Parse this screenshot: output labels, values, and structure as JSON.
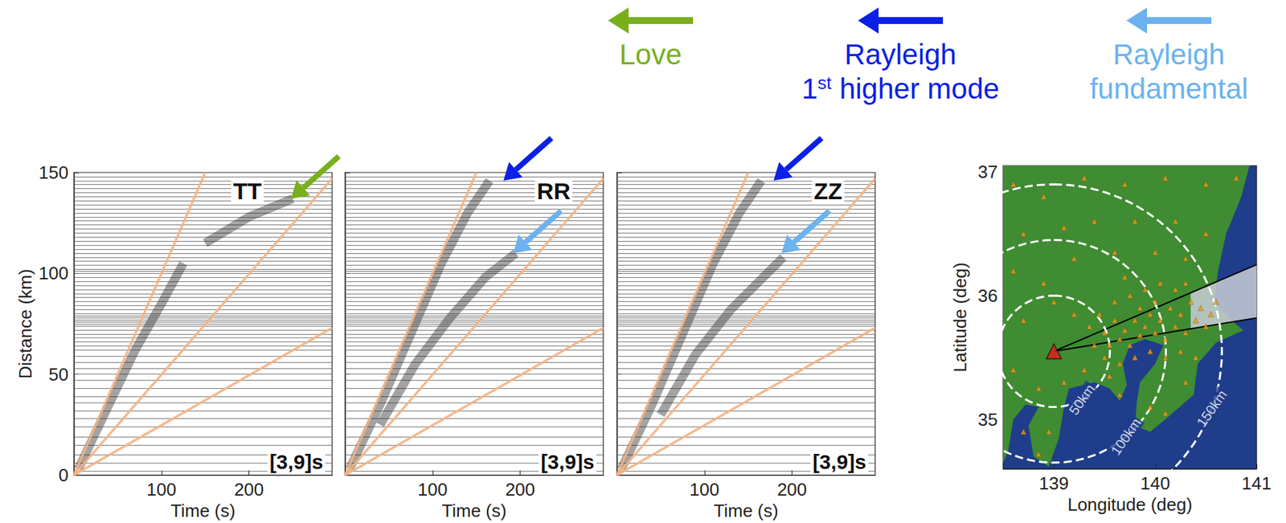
{
  "waves": [
    {
      "lines": [
        "Love"
      ],
      "color": "#7aaf1c"
    },
    {
      "lines": [
        "Rayleigh",
        "1st higher mode"
      ],
      "color": "#0b1fe6"
    },
    {
      "lines": [
        "Rayleigh",
        "fundamental"
      ],
      "color": "#6cb2ee"
    }
  ],
  "chart_data": [
    {
      "type": "record_section",
      "title": "TT",
      "subtitle": "[3,9]s",
      "x_label": "Time (s)",
      "y_label": "Distance (km)",
      "xlim": [
        0,
        295
      ],
      "ylim": [
        0,
        150
      ],
      "xticks": [
        100,
        200
      ],
      "yticks": [
        0,
        50,
        100,
        150
      ],
      "trace_distances": [
        2,
        6,
        10,
        15,
        19,
        24,
        28,
        32,
        36,
        39,
        43,
        47,
        50,
        53,
        56,
        59,
        62,
        64,
        66,
        68,
        70,
        72,
        74,
        75,
        76,
        77,
        78,
        79,
        80,
        82,
        84,
        86,
        88,
        90,
        92,
        94,
        96,
        98,
        100,
        101,
        102,
        104,
        106,
        108,
        110,
        112,
        114,
        116,
        118,
        120,
        122,
        124,
        126,
        128,
        130,
        132,
        134,
        136,
        138,
        140,
        142,
        144,
        146,
        148
      ],
      "wave_packets": [
        [
          [
            5,
            3
          ],
          [
            40,
            35
          ],
          [
            70,
            62
          ],
          [
            100,
            85
          ],
          [
            125,
            105
          ]
        ],
        [
          [
            150,
            115
          ],
          [
            200,
            128
          ],
          [
            250,
            137
          ]
        ]
      ],
      "reference_lines": [
        {
          "x": [
            0,
            150
          ],
          "y": [
            0,
            150
          ],
          "color": "#f4b183"
        },
        {
          "x": [
            0,
            295
          ],
          "y": [
            0,
            147
          ],
          "color": "#f4b183"
        },
        {
          "x": [
            0,
            295
          ],
          "y": [
            0,
            73
          ],
          "color": "#f4b183"
        }
      ],
      "arrows": [
        {
          "wave": "Love",
          "tip": [
            248,
            137
          ]
        }
      ]
    },
    {
      "type": "record_section",
      "title": "RR",
      "subtitle": "[3,9]s",
      "x_label": "Time (s)",
      "xlim": [
        0,
        295
      ],
      "ylim": [
        0,
        150
      ],
      "xticks": [
        100,
        200
      ],
      "yticks": [
        0,
        50,
        100,
        150
      ],
      "tick_labels": "x",
      "trace_distances": [
        2,
        6,
        10,
        15,
        19,
        24,
        28,
        32,
        36,
        39,
        43,
        47,
        50,
        53,
        56,
        59,
        62,
        64,
        66,
        68,
        70,
        72,
        74,
        75,
        76,
        77,
        78,
        79,
        80,
        82,
        84,
        86,
        88,
        90,
        92,
        94,
        96,
        98,
        100,
        101,
        102,
        104,
        106,
        108,
        110,
        112,
        114,
        116,
        118,
        120,
        122,
        124,
        126,
        128,
        130,
        132,
        134,
        136,
        138,
        140,
        142,
        144,
        146,
        148
      ],
      "wave_packets": [
        [
          [
            5,
            3
          ],
          [
            40,
            35
          ],
          [
            80,
            75
          ],
          [
            110,
            105
          ],
          [
            140,
            130
          ],
          [
            165,
            146
          ]
        ],
        [
          [
            40,
            25
          ],
          [
            80,
            55
          ],
          [
            120,
            78
          ],
          [
            160,
            98
          ],
          [
            195,
            110
          ]
        ]
      ],
      "reference_lines": [
        {
          "x": [
            0,
            150
          ],
          "y": [
            0,
            150
          ],
          "color": "#f4b183"
        },
        {
          "x": [
            0,
            295
          ],
          "y": [
            0,
            147
          ],
          "color": "#f4b183"
        },
        {
          "x": [
            0,
            295
          ],
          "y": [
            0,
            73
          ],
          "color": "#f4b183"
        }
      ],
      "arrows": [
        {
          "wave": "Rayleigh 1st higher mode",
          "tip": [
            181,
            146
          ]
        },
        {
          "wave": "Rayleigh fundamental",
          "tip": [
            192,
            110
          ]
        }
      ]
    },
    {
      "type": "record_section",
      "title": "ZZ",
      "subtitle": "[3,9]s",
      "x_label": "Time (s)",
      "xlim": [
        0,
        295
      ],
      "ylim": [
        0,
        150
      ],
      "xticks": [
        100,
        200
      ],
      "yticks": [
        0,
        50,
        100,
        150
      ],
      "tick_labels": "x",
      "trace_distances": [
        2,
        6,
        10,
        15,
        19,
        24,
        28,
        32,
        36,
        39,
        43,
        47,
        50,
        53,
        56,
        59,
        62,
        64,
        66,
        68,
        70,
        72,
        74,
        75,
        76,
        77,
        78,
        79,
        80,
        82,
        84,
        86,
        88,
        90,
        92,
        94,
        96,
        98,
        100,
        101,
        102,
        104,
        106,
        108,
        110,
        112,
        114,
        116,
        118,
        120,
        122,
        124,
        126,
        128,
        130,
        132,
        134,
        136,
        138,
        140,
        142,
        144,
        146,
        148
      ],
      "wave_packets": [
        [
          [
            5,
            3
          ],
          [
            40,
            35
          ],
          [
            80,
            75
          ],
          [
            110,
            105
          ],
          [
            140,
            130
          ],
          [
            165,
            146
          ]
        ],
        [
          [
            50,
            30
          ],
          [
            90,
            60
          ],
          [
            130,
            82
          ],
          [
            190,
            108
          ]
        ]
      ],
      "reference_lines": [
        {
          "x": [
            0,
            150
          ],
          "y": [
            0,
            150
          ],
          "color": "#f4b183"
        },
        {
          "x": [
            0,
            295
          ],
          "y": [
            0,
            147
          ],
          "color": "#f4b183"
        },
        {
          "x": [
            0,
            295
          ],
          "y": [
            0,
            73
          ],
          "color": "#f4b183"
        }
      ],
      "arrows": [
        {
          "wave": "Rayleigh 1st higher mode",
          "tip": [
            179,
            146
          ]
        },
        {
          "wave": "Rayleigh fundamental",
          "tip": [
            188,
            110
          ]
        }
      ]
    },
    {
      "type": "map",
      "x_label": "Longitude (deg)",
      "y_label": "Latitude (deg)",
      "xlim": [
        138.5,
        141
      ],
      "ylim": [
        34.6,
        37.05
      ],
      "xticks": [
        139,
        140,
        141
      ],
      "yticks": [
        35,
        36,
        37
      ],
      "sea": {
        "color": "#1f3d8a"
      },
      "land": {
        "color": "#3f8c32",
        "outline": [
          [
            138.5,
            37.05
          ],
          [
            140.93,
            37.05
          ],
          [
            140.85,
            36.8
          ],
          [
            140.7,
            36.5
          ],
          [
            140.62,
            36.2
          ],
          [
            140.58,
            35.95
          ],
          [
            140.75,
            35.8
          ],
          [
            140.87,
            35.72
          ],
          [
            140.6,
            35.62
          ],
          [
            140.42,
            35.45
          ],
          [
            140.38,
            35.2
          ],
          [
            140.1,
            35.0
          ],
          [
            139.95,
            34.9
          ],
          [
            139.8,
            34.95
          ],
          [
            139.82,
            35.15
          ],
          [
            139.85,
            35.3
          ],
          [
            140.0,
            35.45
          ],
          [
            140.08,
            35.6
          ],
          [
            139.9,
            35.65
          ],
          [
            139.75,
            35.6
          ],
          [
            139.68,
            35.45
          ],
          [
            139.72,
            35.28
          ],
          [
            139.65,
            35.15
          ],
          [
            139.55,
            35.25
          ],
          [
            139.4,
            35.3
          ],
          [
            139.15,
            35.25
          ],
          [
            139.1,
            35.1
          ],
          [
            139.05,
            34.85
          ],
          [
            138.95,
            34.62
          ],
          [
            138.8,
            34.7
          ],
          [
            138.75,
            34.95
          ],
          [
            138.85,
            35.1
          ],
          [
            138.72,
            35.12
          ],
          [
            138.6,
            35.0
          ],
          [
            138.55,
            34.75
          ],
          [
            138.5,
            34.65
          ]
        ]
      },
      "sector": {
        "color": "#c9cdd6",
        "corners": [
          [
            139.0,
            35.55
          ],
          [
            141.0,
            36.25
          ],
          [
            141.0,
            35.82
          ]
        ],
        "shaded": [
          [
            140.35,
            36.02
          ],
          [
            141.0,
            36.25
          ],
          [
            141.0,
            35.82
          ],
          [
            140.35,
            35.73
          ]
        ]
      },
      "rings": {
        "color": "#ffffff",
        "line_style": "dashed",
        "radii": [
          {
            "value": 50,
            "label": "50km"
          },
          {
            "value": 100,
            "label": "100km"
          },
          {
            "value": 150,
            "label": "150km"
          }
        ]
      },
      "stations": {
        "color": "#e89b1f",
        "marker": "triangle",
        "points": [
          [
            138.6,
            36.9
          ],
          [
            138.9,
            36.8
          ],
          [
            139.3,
            36.95
          ],
          [
            139.7,
            36.9
          ],
          [
            140.1,
            36.95
          ],
          [
            140.5,
            36.9
          ],
          [
            140.8,
            36.95
          ],
          [
            138.7,
            36.5
          ],
          [
            139.1,
            36.55
          ],
          [
            139.4,
            36.6
          ],
          [
            139.8,
            36.6
          ],
          [
            140.2,
            36.6
          ],
          [
            140.5,
            36.5
          ],
          [
            138.6,
            36.2
          ],
          [
            138.9,
            36.1
          ],
          [
            139.2,
            36.3
          ],
          [
            139.6,
            36.35
          ],
          [
            140.0,
            36.35
          ],
          [
            140.3,
            36.3
          ],
          [
            138.7,
            35.8
          ],
          [
            139.0,
            35.95
          ],
          [
            139.2,
            35.85
          ],
          [
            138.6,
            35.4
          ],
          [
            138.85,
            35.25
          ],
          [
            138.7,
            34.9
          ],
          [
            138.95,
            34.9
          ],
          [
            138.85,
            34.72
          ],
          [
            139.1,
            35.3
          ],
          [
            139.3,
            35.4
          ],
          [
            139.55,
            35.35
          ],
          [
            139.65,
            35.2
          ],
          [
            139.95,
            35.1
          ],
          [
            140.1,
            35.05
          ],
          [
            140.3,
            35.3
          ],
          [
            139.4,
            35.6
          ],
          [
            139.5,
            35.7
          ],
          [
            139.55,
            35.6
          ],
          [
            139.6,
            35.8
          ],
          [
            139.65,
            35.65
          ],
          [
            139.7,
            35.72
          ],
          [
            139.75,
            35.6
          ],
          [
            139.8,
            35.8
          ],
          [
            139.85,
            35.68
          ],
          [
            139.9,
            35.75
          ],
          [
            139.95,
            35.85
          ],
          [
            140.0,
            35.7
          ],
          [
            140.05,
            35.8
          ],
          [
            140.1,
            35.65
          ],
          [
            140.15,
            35.9
          ],
          [
            140.2,
            35.75
          ],
          [
            140.25,
            35.85
          ],
          [
            140.3,
            35.7
          ],
          [
            140.35,
            35.95
          ],
          [
            140.4,
            35.8
          ],
          [
            140.45,
            35.9
          ],
          [
            140.5,
            35.75
          ],
          [
            140.55,
            35.85
          ],
          [
            140.6,
            35.95
          ],
          [
            139.6,
            35.95
          ],
          [
            139.75,
            36.0
          ],
          [
            139.9,
            36.05
          ],
          [
            140.05,
            36.1
          ],
          [
            140.2,
            36.05
          ],
          [
            139.5,
            35.5
          ],
          [
            139.65,
            35.45
          ],
          [
            139.8,
            35.5
          ],
          [
            139.95,
            35.55
          ],
          [
            140.1,
            35.5
          ],
          [
            140.25,
            35.55
          ],
          [
            140.4,
            35.5
          ],
          [
            139.7,
            36.15
          ],
          [
            139.45,
            35.85
          ],
          [
            139.35,
            35.75
          ],
          [
            140.0,
            35.95
          ],
          [
            139.85,
            35.9
          ],
          [
            140.3,
            36.1
          ]
        ]
      },
      "source": {
        "color": "#e3191c",
        "marker": "triangle",
        "point": [
          139.0,
          35.55
        ]
      }
    }
  ]
}
